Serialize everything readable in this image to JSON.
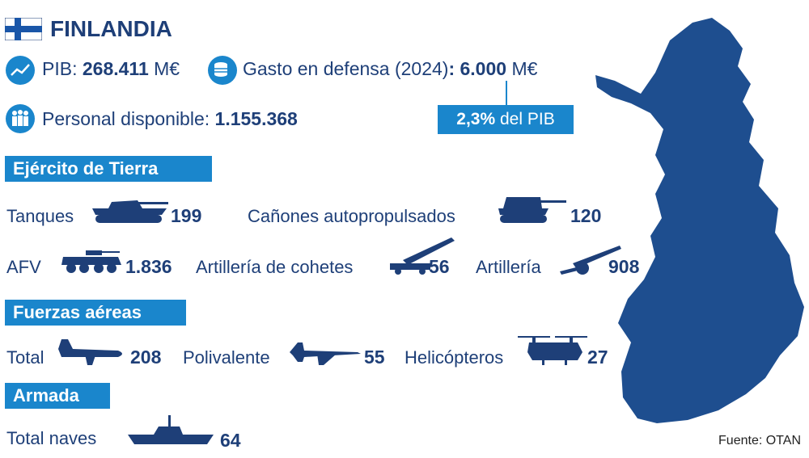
{
  "title": "FINLANDIA",
  "colors": {
    "navy": "#1e3f78",
    "accent": "#1a86cc",
    "map": "#1e4e8f"
  },
  "stats": {
    "pib_label": "PIB:",
    "pib_value": "268.411",
    "pib_unit": "M€",
    "defensa_label": "Gasto en defensa (2024)",
    "defensa_value": ": 6.000",
    "defensa_unit": "M€",
    "pct_value": "2,3%",
    "pct_label": "del PIB",
    "personal_label": "Personal disponible:",
    "personal_value": "1.155.368"
  },
  "sections": {
    "tierra": {
      "label": "Ejército de Tierra",
      "items": [
        {
          "label": "Tanques",
          "value": "199",
          "icon": "tank-icon"
        },
        {
          "label": "Cañones autopropulsados",
          "value": "120",
          "icon": "self-propelled-gun-icon"
        },
        {
          "label": "AFV",
          "value": "1.836",
          "icon": "armored-vehicle-icon"
        },
        {
          "label": "Artillería de cohetes",
          "value": "56",
          "icon": "rocket-launcher-icon"
        },
        {
          "label": "Artillería",
          "value": "908",
          "icon": "howitzer-icon"
        }
      ]
    },
    "aereas": {
      "label": "Fuerzas aéreas",
      "items": [
        {
          "label": "Total",
          "value": "208",
          "icon": "transport-plane-icon"
        },
        {
          "label": "Polivalente",
          "value": "55",
          "icon": "fighter-jet-icon"
        },
        {
          "label": "Helicópteros",
          "value": "27",
          "icon": "helicopter-icon"
        }
      ]
    },
    "armada": {
      "label": "Armada",
      "items": [
        {
          "label": "Total naves",
          "value": "64",
          "icon": "warship-icon"
        }
      ]
    }
  },
  "source": "Fuente: OTAN"
}
